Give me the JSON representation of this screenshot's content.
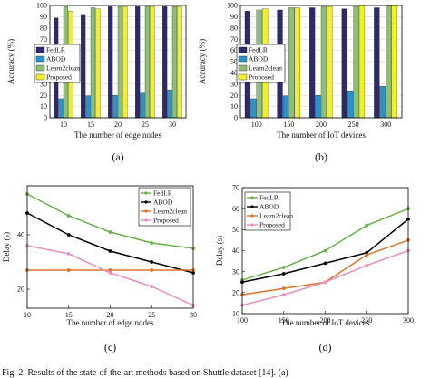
{
  "colors": {
    "navy": "#2b2a6e",
    "teal": "#2a93c9",
    "sage": "#8fbf74",
    "yellow": "#f2ef2a",
    "green_line": "#6ab04c",
    "black_line": "#000000",
    "orange_line": "#d8742c",
    "pink_line": "#e98fc1"
  },
  "caption_text": "Fig. 2. Results of the state-of-the-art methods based on Shuttle dataset [14]. (a)",
  "chart_data": [
    {
      "id": "a",
      "type": "bar",
      "sublabel": "(a)",
      "xlabel": "The number of edge nodes",
      "ylabel": "Accuracy (%)",
      "categories": [
        "10",
        "15",
        "20",
        "25",
        "30"
      ],
      "ylim": [
        0,
        100
      ],
      "yticks": [
        "0",
        "10",
        "20",
        "30",
        "40",
        "50",
        "60",
        "70",
        "80",
        "90",
        "100"
      ],
      "grid": true,
      "legend_position": "left",
      "series": [
        {
          "name": "FedLR",
          "values": [
            89,
            92,
            99,
            99,
            99
          ]
        },
        {
          "name": "ABOD",
          "values": [
            17,
            19.5,
            20,
            22,
            25
          ]
        },
        {
          "name": "Learn2clean",
          "values": [
            99,
            98,
            99,
            99,
            99
          ]
        },
        {
          "name": "Proposed",
          "values": [
            95,
            97,
            99,
            99,
            99
          ]
        }
      ]
    },
    {
      "id": "b",
      "type": "bar",
      "sublabel": "(b)",
      "xlabel": "The number of IoT devices",
      "ylabel": "Accuracy (%)",
      "categories": [
        "100",
        "150",
        "200",
        "250",
        "300"
      ],
      "ylim": [
        0,
        100
      ],
      "yticks": [
        "0",
        "10",
        "20",
        "30",
        "40",
        "50",
        "60",
        "70",
        "80",
        "90",
        "100"
      ],
      "grid": true,
      "legend_position": "left",
      "series": [
        {
          "name": "FedLR",
          "values": [
            95,
            96,
            98,
            97,
            98
          ]
        },
        {
          "name": "ABOD",
          "values": [
            17,
            19.5,
            20,
            24,
            28
          ]
        },
        {
          "name": "Learn2clean",
          "values": [
            96,
            98,
            99,
            99,
            100
          ]
        },
        {
          "name": "Proposed",
          "values": [
            97,
            98,
            99,
            100,
            100
          ]
        }
      ]
    },
    {
      "id": "c",
      "type": "line",
      "sublabel": "(c)",
      "xlabel": "The number of edge nodes",
      "ylabel": "Delay (s)",
      "x": [
        10,
        15,
        20,
        25,
        30
      ],
      "xticks": [
        "10",
        "15",
        "20",
        "25",
        "30"
      ],
      "xlim": [
        10,
        30
      ],
      "ylim": [
        13,
        58
      ],
      "yticks": [
        20,
        40
      ],
      "grid": false,
      "legend_position": "top-right",
      "series": [
        {
          "name": "FedLR",
          "values": [
            55,
            47,
            41,
            37,
            35
          ]
        },
        {
          "name": "ABOD",
          "values": [
            48,
            40,
            34,
            30,
            26
          ]
        },
        {
          "name": "Learn2clean",
          "values": [
            27,
            27,
            27,
            27,
            27
          ]
        },
        {
          "name": "Proposed",
          "values": [
            36,
            33,
            26,
            21,
            14
          ]
        }
      ]
    },
    {
      "id": "d",
      "type": "line",
      "sublabel": "(d)",
      "xlabel": "The number of IoT devices",
      "ylabel": "Delay (s)",
      "x": [
        100,
        150,
        200,
        250,
        300
      ],
      "xticks": [
        "100",
        "150",
        "200",
        "250",
        "300"
      ],
      "xlim": [
        100,
        300
      ],
      "ylim": [
        10,
        70
      ],
      "yticks": [
        10,
        20,
        30,
        40,
        50,
        60,
        70
      ],
      "grid": false,
      "legend_position": "top-left",
      "series": [
        {
          "name": "FedLR",
          "values": [
            26,
            32,
            40,
            52,
            60
          ]
        },
        {
          "name": "ABOD",
          "values": [
            25,
            29,
            34,
            39,
            55
          ]
        },
        {
          "name": "Learn2clean",
          "values": [
            19,
            22,
            25,
            38,
            45
          ]
        },
        {
          "name": "Proposed",
          "values": [
            14,
            19,
            25,
            33,
            40
          ]
        }
      ]
    }
  ]
}
